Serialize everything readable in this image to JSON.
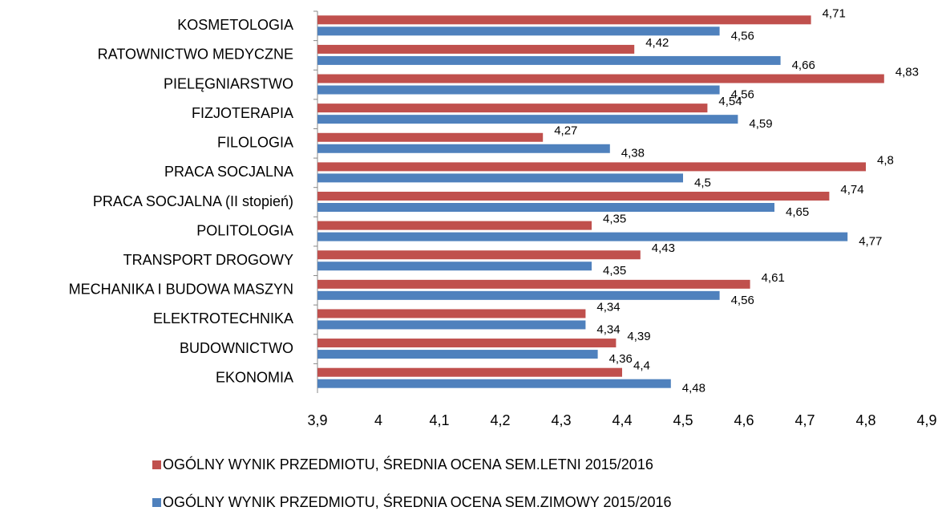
{
  "chart_data": {
    "type": "bar",
    "orientation": "horizontal",
    "categories": [
      "KOSMETOLOGIA",
      "RATOWNICTWO MEDYCZNE",
      "PIELĘGNIARSTWO",
      "FIZJOTERAPIA",
      "FILOLOGIA",
      "PRACA SOCJALNA",
      "PRACA SOCJALNA (II stopień)",
      "POLITOLOGIA",
      "TRANSPORT DROGOWY",
      "MECHANIKA I BUDOWA MASZYN",
      "ELEKTROTECHNIKA",
      "BUDOWNICTWO",
      "EKONOMIA"
    ],
    "series": [
      {
        "name": "OGÓLNY WYNIK PRZEDMIOTU, ŚREDNIA OCENA SEM.LETNI 2015/2016",
        "color": "#c0504d",
        "values": [
          4.71,
          4.42,
          4.83,
          4.54,
          4.27,
          4.8,
          4.74,
          4.35,
          4.43,
          4.61,
          4.34,
          4.39,
          4.4
        ],
        "value_labels": [
          "4,71",
          "4,42",
          "4,83",
          "4,54",
          "4,27",
          "4,8",
          "4,74",
          "4,35",
          "4,43",
          "4,61",
          "4,34",
          "4,39",
          "4,4"
        ]
      },
      {
        "name": "OGÓLNY WYNIK PRZEDMIOTU, ŚREDNIA OCENA SEM.ZIMOWY 2015/2016",
        "color": "#4f81bd",
        "values": [
          4.56,
          4.66,
          4.56,
          4.59,
          4.38,
          4.5,
          4.65,
          4.77,
          4.35,
          4.56,
          4.34,
          4.36,
          4.48
        ],
        "value_labels": [
          "4,56",
          "4,66",
          "4,56",
          "4,59",
          "4,38",
          "4,5",
          "4,65",
          "4,77",
          "4,35",
          "4,56",
          "4,34",
          "4,36",
          "4,48"
        ]
      }
    ],
    "xlim": [
      3.9,
      4.9
    ],
    "xticks": [
      {
        "value": 3.9,
        "label": "3,9"
      },
      4,
      {
        "value": 4.1,
        "label": "4,1"
      },
      {
        "value": 4.2,
        "label": "4,2"
      },
      {
        "value": 4.3,
        "label": "4,3"
      },
      {
        "value": 4.4,
        "label": "4,4"
      },
      {
        "value": 4.5,
        "label": "4,5"
      },
      {
        "value": 4.6,
        "label": "4,6"
      },
      {
        "value": 4.7,
        "label": "4,7"
      },
      {
        "value": 4.8,
        "label": "4,8"
      },
      {
        "value": 4.9,
        "label": "4,9"
      }
    ],
    "grid": false,
    "legend": "bottom"
  }
}
